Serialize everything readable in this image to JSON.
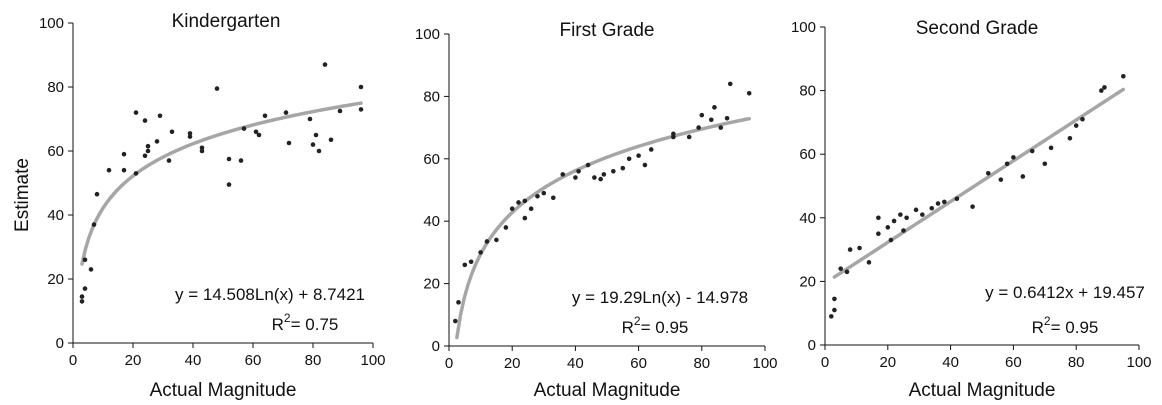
{
  "figure": {
    "ylabel": "Estimate",
    "colors": {
      "points": "#222222",
      "fit": "#a6a6a6",
      "axis": "#111111"
    }
  },
  "chart_data": [
    {
      "type": "scatter",
      "title": "Kindergarten",
      "xlabel": "Actual Magnitude",
      "ylabel": "Estimate",
      "xlim": [
        0,
        100
      ],
      "ylim": [
        0,
        100
      ],
      "xticks": [
        "0",
        "20",
        "40",
        "60",
        "80",
        "100"
      ],
      "yticks": [
        "0",
        "20",
        "40",
        "60",
        "80",
        "100"
      ],
      "fit": {
        "kind": "log",
        "a": 14.508,
        "b": 8.7421,
        "x_range": [
          3,
          96
        ]
      },
      "equation": "y = 14.508Ln(x) + 8.7421",
      "r2_prefix": "R",
      "r2_sup": "2",
      "r2_value": "= 0.75",
      "points": [
        [
          3,
          13
        ],
        [
          3,
          14.5
        ],
        [
          4,
          17
        ],
        [
          4,
          26
        ],
        [
          6,
          23
        ],
        [
          7,
          37
        ],
        [
          8,
          46.5
        ],
        [
          12,
          54
        ],
        [
          17,
          54
        ],
        [
          17,
          59
        ],
        [
          21,
          53
        ],
        [
          21,
          72
        ],
        [
          24,
          69.5
        ],
        [
          24,
          58.5
        ],
        [
          25,
          60
        ],
        [
          25,
          61.5
        ],
        [
          28,
          63
        ],
        [
          29,
          71
        ],
        [
          32,
          57
        ],
        [
          33,
          66
        ],
        [
          39,
          64.5
        ],
        [
          39,
          65.5
        ],
        [
          43,
          60
        ],
        [
          43,
          61
        ],
        [
          48,
          79.5
        ],
        [
          52,
          57.5
        ],
        [
          52,
          49.5
        ],
        [
          56,
          57
        ],
        [
          57,
          67
        ],
        [
          61,
          66
        ],
        [
          62,
          65
        ],
        [
          64,
          71
        ],
        [
          71,
          72
        ],
        [
          72,
          62.5
        ],
        [
          79,
          70
        ],
        [
          80,
          62
        ],
        [
          81,
          65
        ],
        [
          82,
          60
        ],
        [
          84,
          87
        ],
        [
          86,
          63.5
        ],
        [
          89,
          72.5
        ],
        [
          96,
          80
        ],
        [
          96,
          73
        ]
      ]
    },
    {
      "type": "scatter",
      "title": "First Grade",
      "xlabel": "Actual Magnitude",
      "ylabel": "",
      "xlim": [
        0,
        100
      ],
      "ylim": [
        0,
        100
      ],
      "xticks": [
        "0",
        "20",
        "40",
        "60",
        "80",
        "100"
      ],
      "yticks": [
        "0",
        "20",
        "40",
        "60",
        "80",
        "100"
      ],
      "fit": {
        "kind": "log",
        "a": 19.29,
        "b": -14.978,
        "x_range": [
          2.5,
          95
        ]
      },
      "equation": "y = 19.29Ln(x) - 14.978",
      "r2_prefix": "R",
      "r2_sup": "2",
      "r2_value": "= 0.95",
      "points": [
        [
          2,
          8
        ],
        [
          3,
          14
        ],
        [
          5,
          26
        ],
        [
          7,
          27
        ],
        [
          10,
          30
        ],
        [
          12,
          33.5
        ],
        [
          15,
          34
        ],
        [
          18,
          38
        ],
        [
          20,
          44
        ],
        [
          22,
          46
        ],
        [
          24,
          41
        ],
        [
          24,
          46.5
        ],
        [
          26,
          44
        ],
        [
          28,
          48
        ],
        [
          30,
          49
        ],
        [
          33,
          47.5
        ],
        [
          36,
          55
        ],
        [
          40,
          54
        ],
        [
          41,
          56
        ],
        [
          44,
          58
        ],
        [
          46,
          54
        ],
        [
          48,
          53.5
        ],
        [
          49,
          55
        ],
        [
          52,
          56
        ],
        [
          55,
          57
        ],
        [
          57,
          60
        ],
        [
          60,
          61
        ],
        [
          62,
          58
        ],
        [
          64,
          63
        ],
        [
          71,
          67
        ],
        [
          71,
          68
        ],
        [
          76,
          67
        ],
        [
          79,
          70
        ],
        [
          80,
          74
        ],
        [
          83,
          72.5
        ],
        [
          84,
          76.5
        ],
        [
          86,
          70
        ],
        [
          88,
          73
        ],
        [
          89,
          84
        ],
        [
          95,
          81
        ]
      ]
    },
    {
      "type": "scatter",
      "title": "Second Grade",
      "xlabel": "Actual Magnitude",
      "ylabel": "",
      "xlim": [
        0,
        100
      ],
      "ylim": [
        0,
        100
      ],
      "xticks": [
        "0",
        "20",
        "40",
        "60",
        "80",
        "100"
      ],
      "yticks": [
        "0",
        "20",
        "40",
        "60",
        "80",
        "100"
      ],
      "fit": {
        "kind": "linear",
        "a": 0.6412,
        "b": 19.457,
        "x_range": [
          3,
          95
        ]
      },
      "equation": "y = 0.6412x + 19.457",
      "r2_prefix": "R",
      "r2_sup": "2",
      "r2_value": "= 0.95",
      "points": [
        [
          2,
          9
        ],
        [
          3,
          11
        ],
        [
          3,
          14.5
        ],
        [
          5,
          24
        ],
        [
          7,
          23
        ],
        [
          8,
          30
        ],
        [
          11,
          30.5
        ],
        [
          14,
          26
        ],
        [
          17,
          35
        ],
        [
          17,
          40
        ],
        [
          20,
          37
        ],
        [
          21,
          33
        ],
        [
          22,
          39
        ],
        [
          24,
          41
        ],
        [
          25,
          36
        ],
        [
          26,
          40
        ],
        [
          29,
          42.5
        ],
        [
          31,
          41
        ],
        [
          34,
          43
        ],
        [
          36,
          44.5
        ],
        [
          38,
          45
        ],
        [
          42,
          46
        ],
        [
          47,
          43.5
        ],
        [
          52,
          54
        ],
        [
          56,
          52
        ],
        [
          58,
          57
        ],
        [
          60,
          59
        ],
        [
          63,
          53
        ],
        [
          66,
          61
        ],
        [
          70,
          57
        ],
        [
          72,
          62
        ],
        [
          78,
          65
        ],
        [
          80,
          69
        ],
        [
          82,
          71
        ],
        [
          88,
          80
        ],
        [
          89,
          81
        ],
        [
          95,
          84.5
        ]
      ]
    }
  ]
}
